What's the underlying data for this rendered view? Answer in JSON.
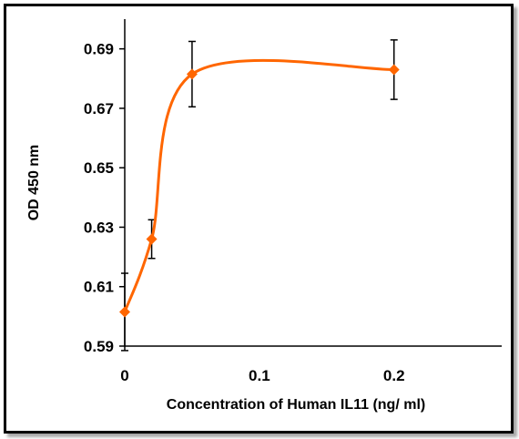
{
  "chart_data": {
    "type": "line",
    "title": "",
    "xlabel": "Concentration of Human IL11 (ng/ ml)",
    "ylabel": "OD 450 nm",
    "xlim": [
      0,
      0.28
    ],
    "ylim": [
      0.59,
      0.7
    ],
    "xticks": [
      0,
      0.1,
      0.2
    ],
    "xtick_labels": [
      "0",
      "0.1",
      "0.2"
    ],
    "yticks": [
      0.59,
      0.61,
      0.63,
      0.65,
      0.67,
      0.69
    ],
    "ytick_labels": [
      "0.59",
      "0.61",
      "0.63",
      "0.65",
      "0.67",
      "0.69"
    ],
    "grid": false,
    "smooth": true,
    "marker": "diamond",
    "color": "#FF6600",
    "series": [
      {
        "x": [
          0,
          0.02,
          0.05,
          0.2
        ],
        "y": [
          0.6015,
          0.626,
          0.6815,
          0.683
        ],
        "error": [
          0.013,
          0.0065,
          0.011,
          0.01
        ]
      }
    ]
  }
}
